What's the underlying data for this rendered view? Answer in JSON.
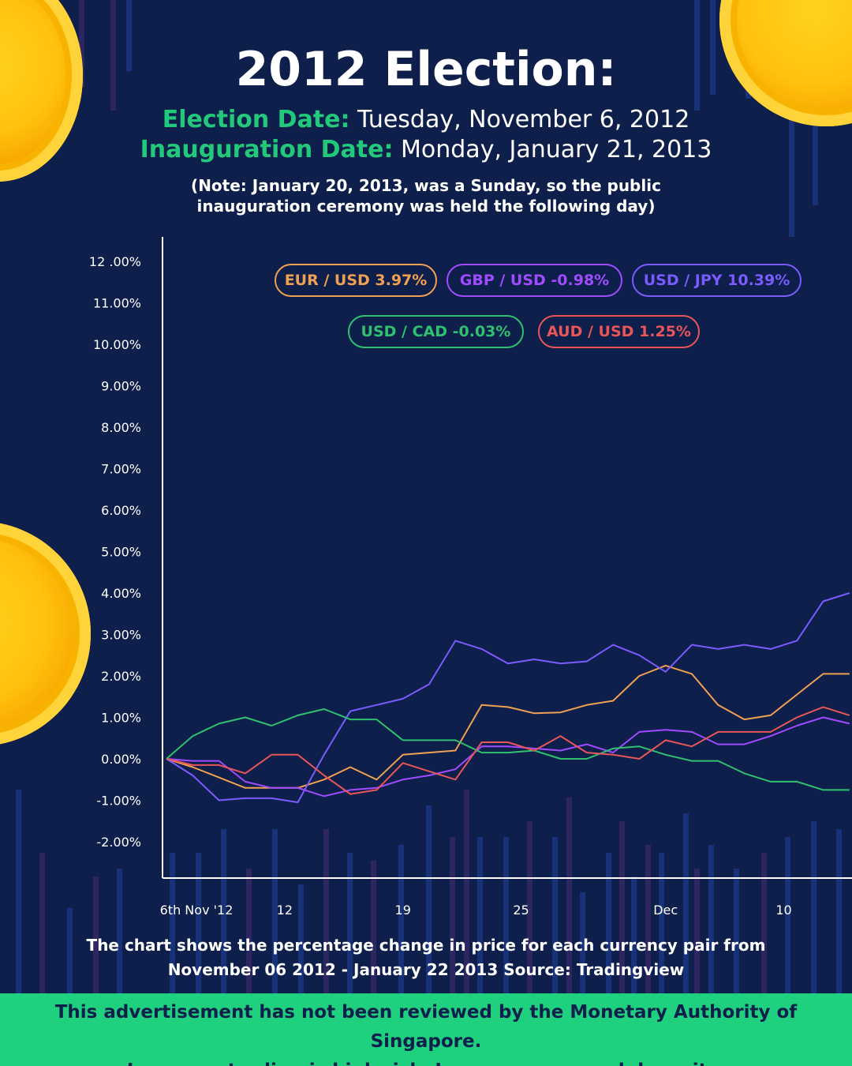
{
  "title": "2012 Election:",
  "election": {
    "label": "Election Date:",
    "value": "Tuesday, November 6, 2012"
  },
  "inauguration": {
    "label": "Inauguration Date:",
    "value": "Monday, January 21, 2013"
  },
  "note": {
    "line1": "(Note: January 20, 2013, was a Sunday, so the public",
    "line2": "inauguration ceremony was held the following day)"
  },
  "caption": {
    "line1": "The chart shows the percentage change in price for each currency pair from",
    "line2": "November 06 2012 - January 22 2013 Source: Tradingview"
  },
  "disclaimer": {
    "line1": "This advertisement has not been reviewed by the Monetary Authority of Singapore.",
    "line2": "Leverage trading is high risk. Losses can exceed deposits."
  },
  "colors": {
    "background": "#0d1f4a",
    "accent_green": "#22c97a",
    "footer": "#1fd07e",
    "coin": "#ffc20e"
  },
  "chart_data": {
    "type": "line",
    "x_tick_labels": [
      "6th Nov '12",
      "12",
      "19",
      "25",
      "Dec",
      "10"
    ],
    "y_tick_labels": [
      "12 .00%",
      "11.00%",
      "10.00%",
      "9.00%",
      "8.00%",
      "7.00%",
      "6.00%",
      "5.00%",
      "4.00%",
      "3.00%",
      "2.00%",
      "1.00%",
      "0.00%",
      "-1.00%",
      "-2.00%"
    ],
    "ylim": [
      -2.0,
      12.0
    ],
    "grid": false,
    "legend_position": "top",
    "series": [
      {
        "name": "EUR / USD",
        "legend": "EUR / USD 3.97%",
        "color": "#f0a052",
        "values": [
          0,
          -0.2,
          -0.45,
          -0.7,
          -0.7,
          -0.7,
          -0.5,
          -0.2,
          -0.5,
          0.1,
          0.15,
          0.2,
          1.3,
          1.25,
          1.1,
          1.12,
          1.3,
          1.4,
          2.0,
          2.25,
          2.05,
          1.3,
          0.95,
          1.05,
          1.55,
          2.05,
          2.05
        ]
      },
      {
        "name": "GBP / USD",
        "legend": "GBP / USD -0.98%",
        "color": "#a04bff",
        "values": [
          0,
          -0.05,
          -0.05,
          -0.55,
          -0.7,
          -0.7,
          -0.9,
          -0.75,
          -0.7,
          -0.5,
          -0.4,
          -0.25,
          0.3,
          0.3,
          0.25,
          0.2,
          0.35,
          0.15,
          0.65,
          0.7,
          0.65,
          0.35,
          0.35,
          0.55,
          0.8,
          1.0,
          0.85
        ]
      },
      {
        "name": "USD / JPY",
        "legend": "USD / JPY 10.39%",
        "color": "#7b5bff",
        "values": [
          0,
          -0.4,
          -1.0,
          -0.95,
          -0.95,
          -1.05,
          0.1,
          1.15,
          1.3,
          1.45,
          1.8,
          2.85,
          2.65,
          2.3,
          2.4,
          2.3,
          2.35,
          2.75,
          2.5,
          2.1,
          2.75,
          2.65,
          2.75,
          2.65,
          2.85,
          3.8,
          4.0
        ]
      },
      {
        "name": "USD / CAD",
        "legend": "USD / CAD -0.03%",
        "color": "#2fc170",
        "values": [
          0,
          0.55,
          0.85,
          1.0,
          0.8,
          1.05,
          1.2,
          0.95,
          0.95,
          0.45,
          0.45,
          0.45,
          0.15,
          0.15,
          0.2,
          0.0,
          0.0,
          0.25,
          0.3,
          0.1,
          -0.05,
          -0.05,
          -0.35,
          -0.55,
          -0.55,
          -0.75,
          -0.75
        ]
      },
      {
        "name": "AUD / USD",
        "legend": "AUD / USD 1.25%",
        "color": "#e8565a",
        "values": [
          0,
          -0.15,
          -0.15,
          -0.35,
          0.1,
          0.1,
          -0.4,
          -0.85,
          -0.75,
          -0.1,
          -0.3,
          -0.5,
          0.4,
          0.4,
          0.2,
          0.55,
          0.15,
          0.1,
          0.0,
          0.45,
          0.3,
          0.65,
          0.65,
          0.65,
          1.0,
          1.25,
          1.05
        ]
      }
    ]
  }
}
